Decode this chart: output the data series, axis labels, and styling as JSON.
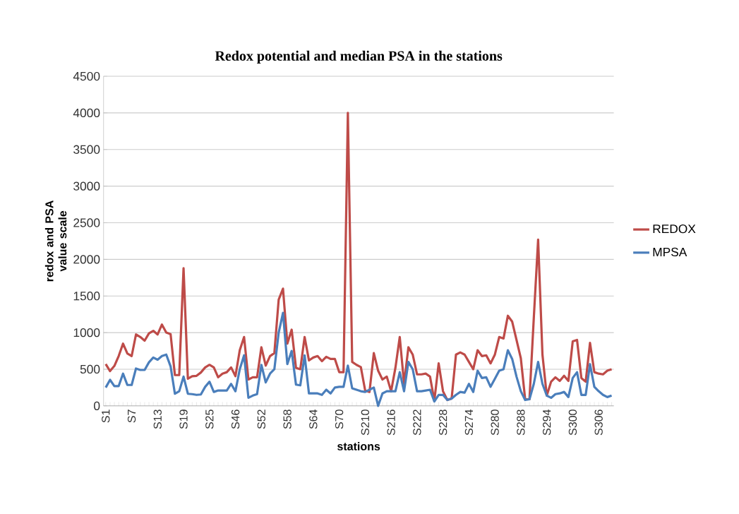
{
  "chart_data": {
    "type": "line",
    "title": "Redox potential and median PSA in the stations",
    "xlabel": "stations",
    "ylabel": "redox and PSA value scale",
    "categories": [
      "S1",
      null,
      null,
      null,
      null,
      null,
      "S7",
      null,
      null,
      null,
      null,
      null,
      "S13",
      null,
      null,
      null,
      null,
      null,
      "S19",
      null,
      null,
      null,
      null,
      null,
      "S25",
      null,
      null,
      null,
      null,
      null,
      "S46",
      null,
      null,
      null,
      null,
      null,
      "S52",
      null,
      null,
      null,
      null,
      null,
      "S58",
      null,
      null,
      null,
      null,
      null,
      "S64",
      null,
      null,
      null,
      null,
      null,
      "S70",
      null,
      null,
      null,
      null,
      null,
      "S210",
      null,
      null,
      null,
      null,
      null,
      "S216",
      null,
      null,
      null,
      null,
      null,
      "S222",
      null,
      null,
      null,
      null,
      null,
      "S228",
      null,
      null,
      null,
      null,
      null,
      "S274",
      null,
      null,
      null,
      null,
      null,
      "S280",
      null,
      null,
      null,
      null,
      null,
      "S288",
      null,
      null,
      null,
      null,
      null,
      "S294",
      null,
      null,
      null,
      null,
      null,
      "S300",
      null,
      null,
      null,
      null,
      null,
      "S306",
      null,
      null,
      null
    ],
    "series": [
      {
        "name": "REDOX",
        "color": "#be4b48",
        "values": [
          570,
          475,
          545,
          680,
          850,
          715,
          680,
          975,
          940,
          890,
          990,
          1025,
          975,
          1110,
          1000,
          980,
          420,
          420,
          1880,
          370,
          405,
          410,
          455,
          525,
          560,
          525,
          390,
          440,
          460,
          525,
          405,
          760,
          940,
          360,
          390,
          390,
          800,
          550,
          680,
          720,
          1450,
          1600,
          850,
          1040,
          520,
          500,
          940,
          620,
          660,
          680,
          610,
          670,
          640,
          640,
          460,
          460,
          4000,
          600,
          560,
          530,
          210,
          190,
          720,
          480,
          360,
          400,
          200,
          520,
          940,
          300,
          800,
          700,
          430,
          430,
          440,
          400,
          70,
          580,
          200,
          80,
          100,
          700,
          730,
          700,
          600,
          500,
          760,
          680,
          690,
          580,
          700,
          940,
          920,
          1230,
          1150,
          900,
          650,
          90,
          90,
          1200,
          2270,
          700,
          140,
          330,
          390,
          340,
          410,
          340,
          880,
          900,
          380,
          330,
          860,
          460,
          440,
          430,
          480,
          500
        ]
      },
      {
        "name": "MPSA",
        "color": "#4a7ebb",
        "values": [
          250,
          355,
          270,
          270,
          440,
          285,
          285,
          510,
          490,
          490,
          595,
          660,
          630,
          680,
          700,
          540,
          165,
          200,
          400,
          165,
          160,
          150,
          155,
          260,
          330,
          190,
          210,
          210,
          210,
          300,
          200,
          500,
          690,
          110,
          140,
          160,
          560,
          320,
          440,
          500,
          1000,
          1270,
          570,
          750,
          290,
          280,
          690,
          170,
          170,
          170,
          150,
          220,
          170,
          250,
          260,
          260,
          550,
          240,
          220,
          200,
          190,
          220,
          250,
          0,
          170,
          200,
          200,
          200,
          460,
          200,
          600,
          500,
          200,
          200,
          210,
          220,
          60,
          150,
          150,
          80,
          100,
          150,
          190,
          180,
          300,
          190,
          480,
          380,
          390,
          260,
          370,
          480,
          500,
          760,
          640,
          400,
          200,
          80,
          90,
          300,
          600,
          300,
          140,
          110,
          160,
          170,
          190,
          120,
          380,
          460,
          150,
          150,
          570,
          260,
          200,
          150,
          120,
          140
        ]
      }
    ],
    "ylim": [
      0,
      4500
    ],
    "yticks": [
      0,
      500,
      1000,
      1500,
      2000,
      2500,
      3000,
      3500,
      4000,
      4500
    ],
    "grid": "y",
    "legend": "right",
    "marker": "none",
    "line_style": "solid"
  }
}
